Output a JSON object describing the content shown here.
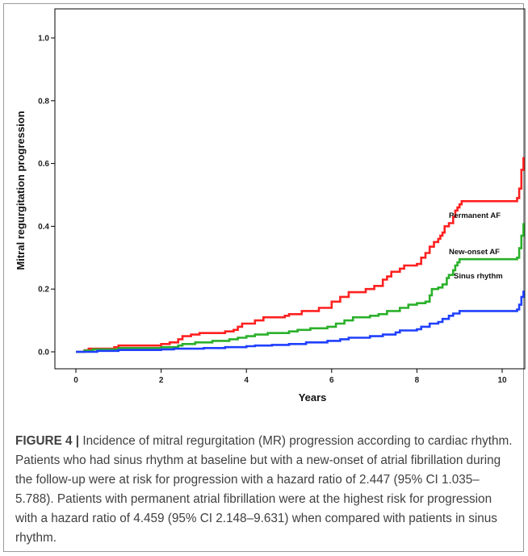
{
  "chart_data": {
    "type": "line",
    "step": true,
    "xlabel": "Years",
    "ylabel": "Mitral regurgitation progression",
    "xlim": [
      0,
      10.5
    ],
    "ylim": [
      0,
      1.0
    ],
    "x_ticks": [
      "0",
      "2",
      "4",
      "6",
      "8",
      "10"
    ],
    "y_ticks": [
      "0.0",
      "0.2",
      "0.4",
      "0.6",
      "0.8",
      "1.0"
    ],
    "grid": false,
    "series": [
      {
        "name": "Permanent AF",
        "color": "#ff2020",
        "points": [
          [
            0,
            0
          ],
          [
            0.2,
            0.005
          ],
          [
            0.3,
            0.01
          ],
          [
            0.9,
            0.015
          ],
          [
            1.0,
            0.02
          ],
          [
            2.0,
            0.025
          ],
          [
            2.2,
            0.03
          ],
          [
            2.4,
            0.04
          ],
          [
            2.5,
            0.05
          ],
          [
            2.7,
            0.055
          ],
          [
            2.9,
            0.06
          ],
          [
            3.5,
            0.065
          ],
          [
            3.7,
            0.07
          ],
          [
            3.8,
            0.08
          ],
          [
            3.9,
            0.09
          ],
          [
            4.2,
            0.1
          ],
          [
            4.4,
            0.11
          ],
          [
            4.9,
            0.115
          ],
          [
            5.0,
            0.12
          ],
          [
            5.3,
            0.13
          ],
          [
            5.7,
            0.14
          ],
          [
            6.0,
            0.16
          ],
          [
            6.2,
            0.175
          ],
          [
            6.4,
            0.19
          ],
          [
            6.8,
            0.2
          ],
          [
            7.0,
            0.21
          ],
          [
            7.2,
            0.23
          ],
          [
            7.3,
            0.24
          ],
          [
            7.4,
            0.255
          ],
          [
            7.6,
            0.265
          ],
          [
            7.7,
            0.275
          ],
          [
            8.0,
            0.28
          ],
          [
            8.1,
            0.3
          ],
          [
            8.2,
            0.315
          ],
          [
            8.3,
            0.335
          ],
          [
            8.4,
            0.35
          ],
          [
            8.5,
            0.36
          ],
          [
            8.55,
            0.37
          ],
          [
            8.6,
            0.38
          ],
          [
            8.65,
            0.4
          ],
          [
            8.75,
            0.41
          ],
          [
            8.85,
            0.43
          ],
          [
            8.9,
            0.45
          ],
          [
            8.95,
            0.46
          ],
          [
            9.0,
            0.47
          ],
          [
            9.05,
            0.48
          ],
          [
            10.35,
            0.49
          ],
          [
            10.4,
            0.52
          ],
          [
            10.45,
            0.58
          ],
          [
            10.5,
            0.62
          ]
        ],
        "end_label": "Permanent AF"
      },
      {
        "name": "New-onset AF",
        "color": "#2ab02a",
        "points": [
          [
            0,
            0
          ],
          [
            0.2,
            0.004
          ],
          [
            0.4,
            0.008
          ],
          [
            1.0,
            0.012
          ],
          [
            2.0,
            0.015
          ],
          [
            2.4,
            0.02
          ],
          [
            2.5,
            0.025
          ],
          [
            2.8,
            0.03
          ],
          [
            3.2,
            0.035
          ],
          [
            3.6,
            0.04
          ],
          [
            3.8,
            0.045
          ],
          [
            4.0,
            0.05
          ],
          [
            4.2,
            0.055
          ],
          [
            4.5,
            0.06
          ],
          [
            5.0,
            0.065
          ],
          [
            5.2,
            0.07
          ],
          [
            5.5,
            0.075
          ],
          [
            5.9,
            0.08
          ],
          [
            6.1,
            0.09
          ],
          [
            6.3,
            0.1
          ],
          [
            6.5,
            0.11
          ],
          [
            6.9,
            0.115
          ],
          [
            7.1,
            0.12
          ],
          [
            7.3,
            0.13
          ],
          [
            7.6,
            0.14
          ],
          [
            7.8,
            0.15
          ],
          [
            8.0,
            0.155
          ],
          [
            8.2,
            0.16
          ],
          [
            8.3,
            0.18
          ],
          [
            8.35,
            0.2
          ],
          [
            8.5,
            0.205
          ],
          [
            8.6,
            0.215
          ],
          [
            8.7,
            0.235
          ],
          [
            8.75,
            0.245
          ],
          [
            8.85,
            0.26
          ],
          [
            8.9,
            0.275
          ],
          [
            8.95,
            0.285
          ],
          [
            9.0,
            0.295
          ],
          [
            10.35,
            0.3
          ],
          [
            10.4,
            0.33
          ],
          [
            10.45,
            0.37
          ],
          [
            10.5,
            0.41
          ]
        ],
        "end_label": "New-onset AF"
      },
      {
        "name": "Sinus rhythm",
        "color": "#1f3fff",
        "points": [
          [
            0,
            0
          ],
          [
            0.5,
            0.003
          ],
          [
            1.0,
            0.006
          ],
          [
            2.0,
            0.008
          ],
          [
            2.3,
            0.01
          ],
          [
            3.0,
            0.012
          ],
          [
            3.5,
            0.015
          ],
          [
            4.0,
            0.018
          ],
          [
            4.2,
            0.02
          ],
          [
            4.6,
            0.022
          ],
          [
            5.0,
            0.025
          ],
          [
            5.4,
            0.03
          ],
          [
            5.9,
            0.035
          ],
          [
            6.2,
            0.04
          ],
          [
            6.4,
            0.045
          ],
          [
            6.9,
            0.05
          ],
          [
            7.2,
            0.055
          ],
          [
            7.5,
            0.062
          ],
          [
            7.6,
            0.068
          ],
          [
            8.0,
            0.072
          ],
          [
            8.1,
            0.08
          ],
          [
            8.3,
            0.09
          ],
          [
            8.5,
            0.095
          ],
          [
            8.6,
            0.105
          ],
          [
            8.75,
            0.115
          ],
          [
            8.85,
            0.122
          ],
          [
            9.0,
            0.13
          ],
          [
            10.35,
            0.135
          ],
          [
            10.4,
            0.15
          ],
          [
            10.45,
            0.175
          ],
          [
            10.5,
            0.195
          ]
        ],
        "end_label": "Sinus rhythm"
      }
    ]
  },
  "caption": {
    "label": "FIGURE 4 |",
    "text": " Incidence of mitral regurgitation (MR) progression according to cardiac rhythm. Patients who had sinus rhythm at baseline but with a new-onset of atrial fibrillation during the follow-up were at risk for progression with a hazard ratio of 2.447 (95% CI 1.035–5.788). Patients with permanent atrial fibrillation were at the highest risk for progression with a hazard ratio of 4.459 (95% CI 2.148–9.631) when compared with patients in sinus rhythm."
  }
}
